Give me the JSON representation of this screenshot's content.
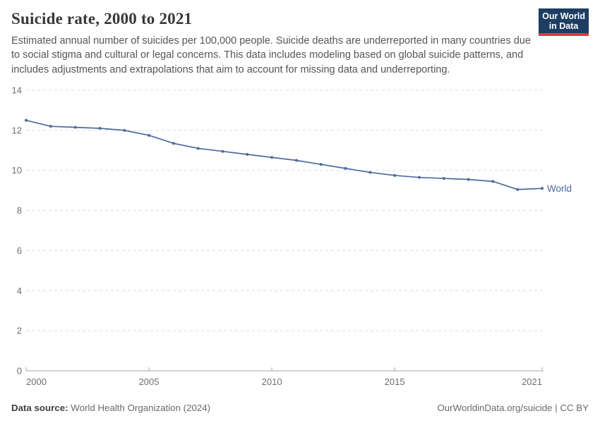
{
  "header": {
    "title": "Suicide rate, 2000 to 2021",
    "subtitle": "Estimated annual number of suicides per 100,000 people. Suicide deaths are underreported in many countries due to social stigma and cultural or legal concerns. This data includes modeling based on global suicide patterns, and includes adjustments and extrapolations that aim to account for missing data and underreporting.",
    "logo": {
      "line1": "Our World",
      "line2": "in Data"
    }
  },
  "chart_data": {
    "type": "line",
    "title": "Suicide rate, 2000 to 2021",
    "x": [
      2000,
      2001,
      2002,
      2003,
      2004,
      2005,
      2006,
      2007,
      2008,
      2009,
      2010,
      2011,
      2012,
      2013,
      2014,
      2015,
      2016,
      2017,
      2018,
      2019,
      2020,
      2021
    ],
    "series": [
      {
        "name": "World",
        "color": "#4c6b9c",
        "values": [
          12.5,
          12.2,
          12.15,
          12.1,
          12.0,
          11.75,
          11.35,
          11.1,
          10.95,
          10.8,
          10.65,
          10.5,
          10.3,
          10.1,
          9.9,
          9.75,
          9.65,
          9.6,
          9.55,
          9.45,
          9.05,
          9.1
        ]
      }
    ],
    "xlabel": "",
    "ylabel": "",
    "ylim": [
      0,
      14
    ],
    "yticks": [
      0,
      2,
      4,
      6,
      8,
      10,
      12,
      14
    ],
    "xticks": [
      2000,
      2005,
      2010,
      2015,
      2021
    ],
    "grid": "horizontal-dashed",
    "legend_position": "end-of-line-label"
  },
  "footer": {
    "source_label": "Data source:",
    "source_text": "World Health Organization (2024)",
    "credit": "OurWorldinData.org/suicide | CC BY"
  },
  "colors": {
    "line": "#4c6b9c",
    "title": "#383838",
    "subtitle": "#555555",
    "tick_label": "#6e6e6e",
    "gridline": "#dcdcdc",
    "axis": "#a6a6a6",
    "logo_bg": "#1d3d63",
    "logo_accent": "#dc3a3f"
  }
}
